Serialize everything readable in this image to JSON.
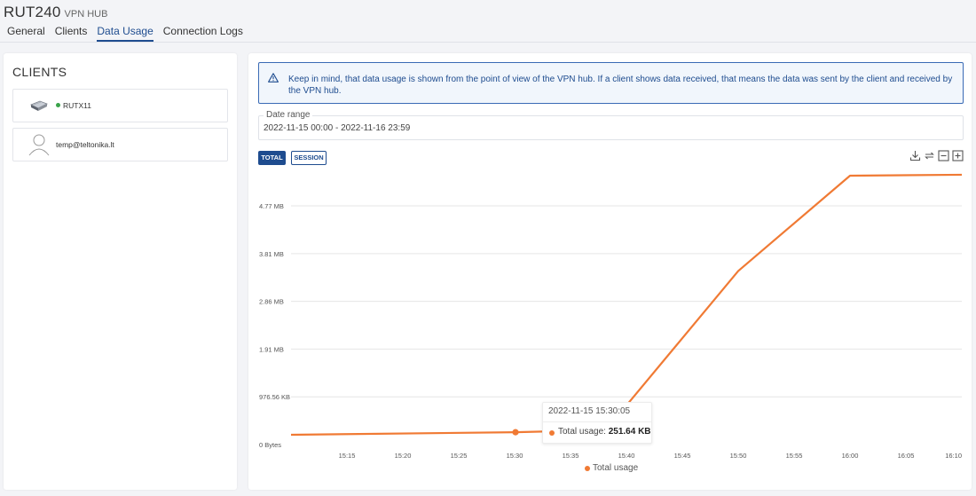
{
  "header": {
    "title": "RUT240",
    "subtitle": "VPN HUB",
    "tabs": [
      {
        "label": "General",
        "active": false
      },
      {
        "label": "Clients",
        "active": false
      },
      {
        "label": "Data Usage",
        "active": true
      },
      {
        "label": "Connection Logs",
        "active": false
      }
    ]
  },
  "sidebar": {
    "title": "CLIENTS",
    "clients": [
      {
        "name": "RUTX11",
        "icon": "router-icon",
        "online": true
      },
      {
        "name": "temp@teltonika.lt",
        "icon": "user-icon",
        "online": false
      }
    ]
  },
  "main": {
    "alert": "Keep in mind, that data usage is shown from the point of view of the VPN hub. If a client shows data received, that means the data was sent by the client and received by the VPN hub.",
    "date_range": {
      "label": "Date range",
      "value": "2022-11-15 00:00 - 2022-11-16 23:59"
    },
    "buttons": {
      "total": "TOTAL",
      "session": "SESSION"
    },
    "tools": [
      "download-icon",
      "refresh-icon",
      "zoom-out-icon",
      "zoom-in-icon"
    ],
    "tooltip": {
      "date": "2022-11-15 15:30:05",
      "label": "Total usage:",
      "value": "251.64 KB"
    }
  },
  "colors": {
    "accent": "#1e4c8f",
    "series": "#f07a34",
    "online": "#3aa34a"
  },
  "chart_data": {
    "type": "line",
    "y_unit": "KB",
    "y_ticks": [
      {
        "value": 0,
        "label": "0 Bytes"
      },
      {
        "value": 976.56,
        "label": "976.56 KB"
      },
      {
        "value": 1953.13,
        "label": "1.91 MB"
      },
      {
        "value": 2929.69,
        "label": "2.86 MB"
      },
      {
        "value": 3906.25,
        "label": "3.81 MB"
      },
      {
        "value": 4882.81,
        "label": "4.77 MB"
      }
    ],
    "ylim": [
      0,
      5700
    ],
    "x_ticks": [
      "15:15",
      "15:20",
      "15:25",
      "15:30",
      "15:35",
      "15:40",
      "15:45",
      "15:50",
      "15:55",
      "16:00",
      "16:05",
      "16:10"
    ],
    "x_ticks_minutes": [
      915,
      920,
      925,
      930,
      935,
      940,
      945,
      950,
      955,
      960,
      965,
      970
    ],
    "xlim_minutes": [
      910,
      970
    ],
    "series": [
      {
        "name": "Total usage",
        "x_minutes": [
          910,
          930.08,
          935,
          940,
          950,
          960,
          970
        ],
        "values": [
          200,
          251.64,
          280,
          800,
          3550,
          5500,
          5520
        ]
      }
    ],
    "highlight": {
      "x_minutes": 930.08,
      "value": 251.64
    },
    "grid": true,
    "legend": "bottom"
  }
}
